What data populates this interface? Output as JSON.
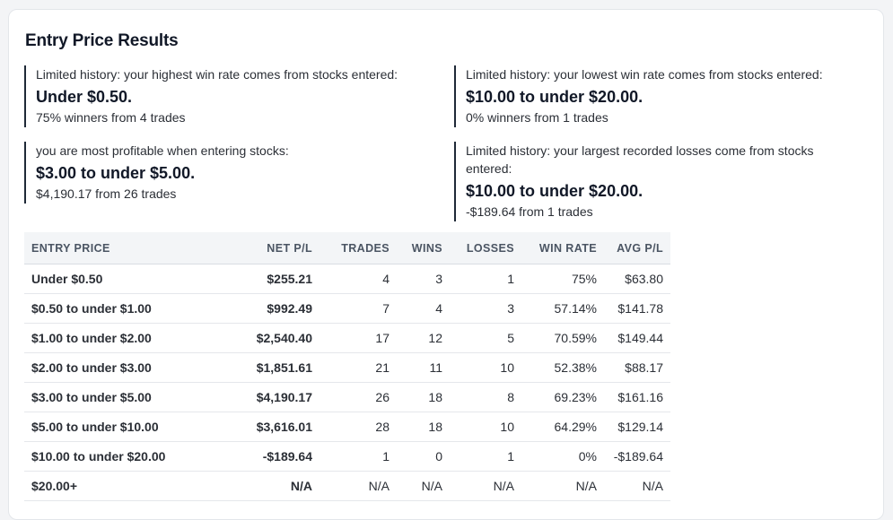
{
  "page": {
    "title": "Entry Price Results"
  },
  "insights": [
    {
      "lead": "Limited history: your highest win rate comes from stocks entered:",
      "range": "Under $0.50.",
      "detail": "75% winners from 4 trades"
    },
    {
      "lead": "Limited history: your lowest win rate comes from stocks entered:",
      "range": "$10.00 to under $20.00.",
      "detail": "0% winners from 1 trades"
    },
    {
      "lead": "you are most profitable when entering stocks:",
      "range": "$3.00 to under $5.00.",
      "detail": "$4,190.17 from 26 trades"
    },
    {
      "lead": "Limited history: your largest recorded losses come from stocks entered:",
      "range": "$10.00 to under $20.00.",
      "detail": "-$189.64 from 1 trades"
    }
  ],
  "table": {
    "headers": [
      "ENTRY PRICE",
      "NET P/L",
      "TRADES",
      "WINS",
      "LOSSES",
      "WIN RATE",
      "AVG P/L"
    ],
    "rows": [
      {
        "entry": "Under $0.50",
        "net": "$255.21",
        "trades": "4",
        "wins": "3",
        "losses": "1",
        "win_rate": "75%",
        "avg": "$63.80"
      },
      {
        "entry": "$0.50 to under $1.00",
        "net": "$992.49",
        "trades": "7",
        "wins": "4",
        "losses": "3",
        "win_rate": "57.14%",
        "avg": "$141.78"
      },
      {
        "entry": "$1.00 to under $2.00",
        "net": "$2,540.40",
        "trades": "17",
        "wins": "12",
        "losses": "5",
        "win_rate": "70.59%",
        "avg": "$149.44"
      },
      {
        "entry": "$2.00 to under $3.00",
        "net": "$1,851.61",
        "trades": "21",
        "wins": "11",
        "losses": "10",
        "win_rate": "52.38%",
        "avg": "$88.17"
      },
      {
        "entry": "$3.00 to under $5.00",
        "net": "$4,190.17",
        "trades": "26",
        "wins": "18",
        "losses": "8",
        "win_rate": "69.23%",
        "avg": "$161.16"
      },
      {
        "entry": "$5.00 to under $10.00",
        "net": "$3,616.01",
        "trades": "28",
        "wins": "18",
        "losses": "10",
        "win_rate": "64.29%",
        "avg": "$129.14"
      },
      {
        "entry": "$10.00 to under $20.00",
        "net": "-$189.64",
        "trades": "1",
        "wins": "0",
        "losses": "1",
        "win_rate": "0%",
        "avg": "-$189.64"
      },
      {
        "entry": "$20.00+",
        "net": "N/A",
        "trades": "N/A",
        "wins": "N/A",
        "losses": "N/A",
        "win_rate": "N/A",
        "avg": "N/A"
      }
    ]
  },
  "colors": {
    "positive": "#2e7d32",
    "negative": "#c62828",
    "header_bg": "#f3f5f7"
  }
}
